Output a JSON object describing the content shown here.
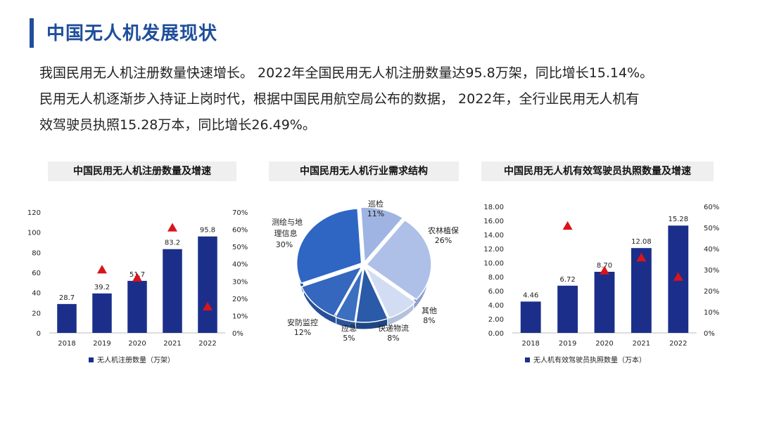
{
  "header": {
    "title": "中国无人机发展现状"
  },
  "intro": {
    "line1": "我国民用无人机注册数量快速增长。  2022年全国民用无人机注册数量达95.8万架，同比增长15.14%。",
    "line2": "民用无人机逐渐步入持证上岗时代，根据中国民用航空局公布的数据，  2022年，全行业民用无人机有",
    "line3": "效驾驶员执照15.28万本，同比增长26.49%。"
  },
  "colors": {
    "accent": "#1f4e9b",
    "bar": "#1b2f8a",
    "marker": "#d9141b",
    "pie": [
      "#9fb9e6",
      "#b4c6ec",
      "#d6e1f5",
      "#2f5fae",
      "#4a7cc6",
      "#3a6cc0"
    ]
  },
  "chart_data": [
    {
      "type": "bar",
      "title": "中国民用无人机注册数量及增速",
      "categories": [
        "2018",
        "2019",
        "2020",
        "2021",
        "2022"
      ],
      "series": [
        {
          "name": "无人机注册数量（万架）",
          "values": [
            28.7,
            39.2,
            51.7,
            83.2,
            95.8
          ]
        },
        {
          "name": "",
          "values": [
            null,
            36.6,
            31.9,
            60.9,
            15.14
          ]
        }
      ],
      "value_labels": [
        "28.7",
        "39.2",
        "51.7",
        "83.2",
        "95.8"
      ],
      "ylim": [
        0,
        120
      ],
      "y_ticks": [
        "0",
        "20",
        "40",
        "60",
        "80",
        "100",
        "120"
      ],
      "y2lim": [
        0,
        70
      ],
      "y2_ticks": [
        "0%",
        "10%",
        "20%",
        "30%",
        "40%",
        "50%",
        "60%",
        "70%"
      ],
      "legend": "bottom"
    },
    {
      "type": "pie",
      "title": "中国民用无人机行业需求结构",
      "slices": [
        {
          "label": "巡检",
          "pct": "11%",
          "value": 11
        },
        {
          "label": "农林植保",
          "pct": "26%",
          "value": 26
        },
        {
          "label": "其他",
          "pct": "8%",
          "value": 8
        },
        {
          "label": "快递物流",
          "pct": "8%",
          "value": 8
        },
        {
          "label": "应急",
          "pct": "5%",
          "value": 5
        },
        {
          "label": "安防监控",
          "pct": "12%",
          "value": 12
        },
        {
          "label_line1": "测绘与地",
          "label_line2": "理信息",
          "pct": "30%",
          "value": 30
        }
      ]
    },
    {
      "type": "bar",
      "title": "中国民用无人机有效驾驶员执照数量及增速",
      "categories": [
        "2018",
        "2019",
        "2020",
        "2021",
        "2022"
      ],
      "series": [
        {
          "name": "无人机有效驾驶员执照数量（万本）",
          "values": [
            4.46,
            6.72,
            8.7,
            12.08,
            15.28
          ]
        },
        {
          "name": "",
          "values": [
            null,
            50.7,
            29.5,
            35.7,
            26.49
          ]
        }
      ],
      "value_labels": [
        "4.46",
        "6.72",
        "8.70",
        "12.08",
        "15.28"
      ],
      "ylim": [
        0,
        18
      ],
      "y_ticks": [
        "0.00",
        "2.00",
        "4.00",
        "6.00",
        "8.00",
        "10.00",
        "12.00",
        "14.00",
        "16.00",
        "18.00"
      ],
      "y2lim": [
        0,
        60
      ],
      "y2_ticks": [
        "0%",
        "10%",
        "20%",
        "30%",
        "40%",
        "50%",
        "60%"
      ],
      "legend": "bottom"
    }
  ]
}
